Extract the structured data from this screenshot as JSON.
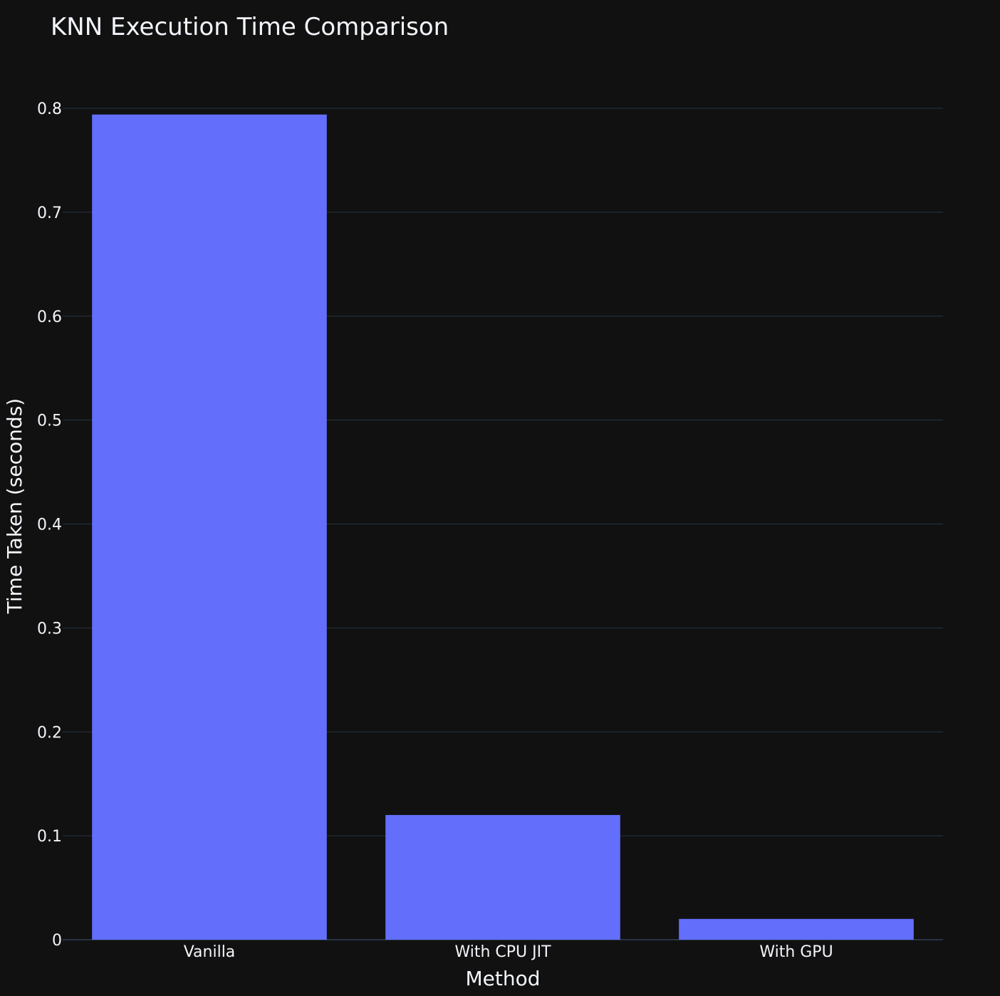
{
  "chart_data": {
    "type": "bar",
    "title": "KNN Execution Time Comparison",
    "xlabel": "Method",
    "ylabel": "Time Taken (seconds)",
    "categories": [
      "Vanilla",
      "With CPU JIT",
      "With GPU"
    ],
    "values": [
      0.794,
      0.12,
      0.02
    ],
    "ylim": [
      0,
      0.8
    ],
    "yticks": [
      0,
      0.1,
      0.2,
      0.3,
      0.4,
      0.5,
      0.6,
      0.7,
      0.8
    ],
    "ytick_labels": [
      "0",
      "0.1",
      "0.2",
      "0.3",
      "0.4",
      "0.5",
      "0.6",
      "0.7",
      "0.8"
    ],
    "grid": true,
    "legend": "none",
    "colors": {
      "background": "#111111",
      "bar": "#636efa",
      "grid": "#283442",
      "text": "#f2f5fa"
    }
  }
}
